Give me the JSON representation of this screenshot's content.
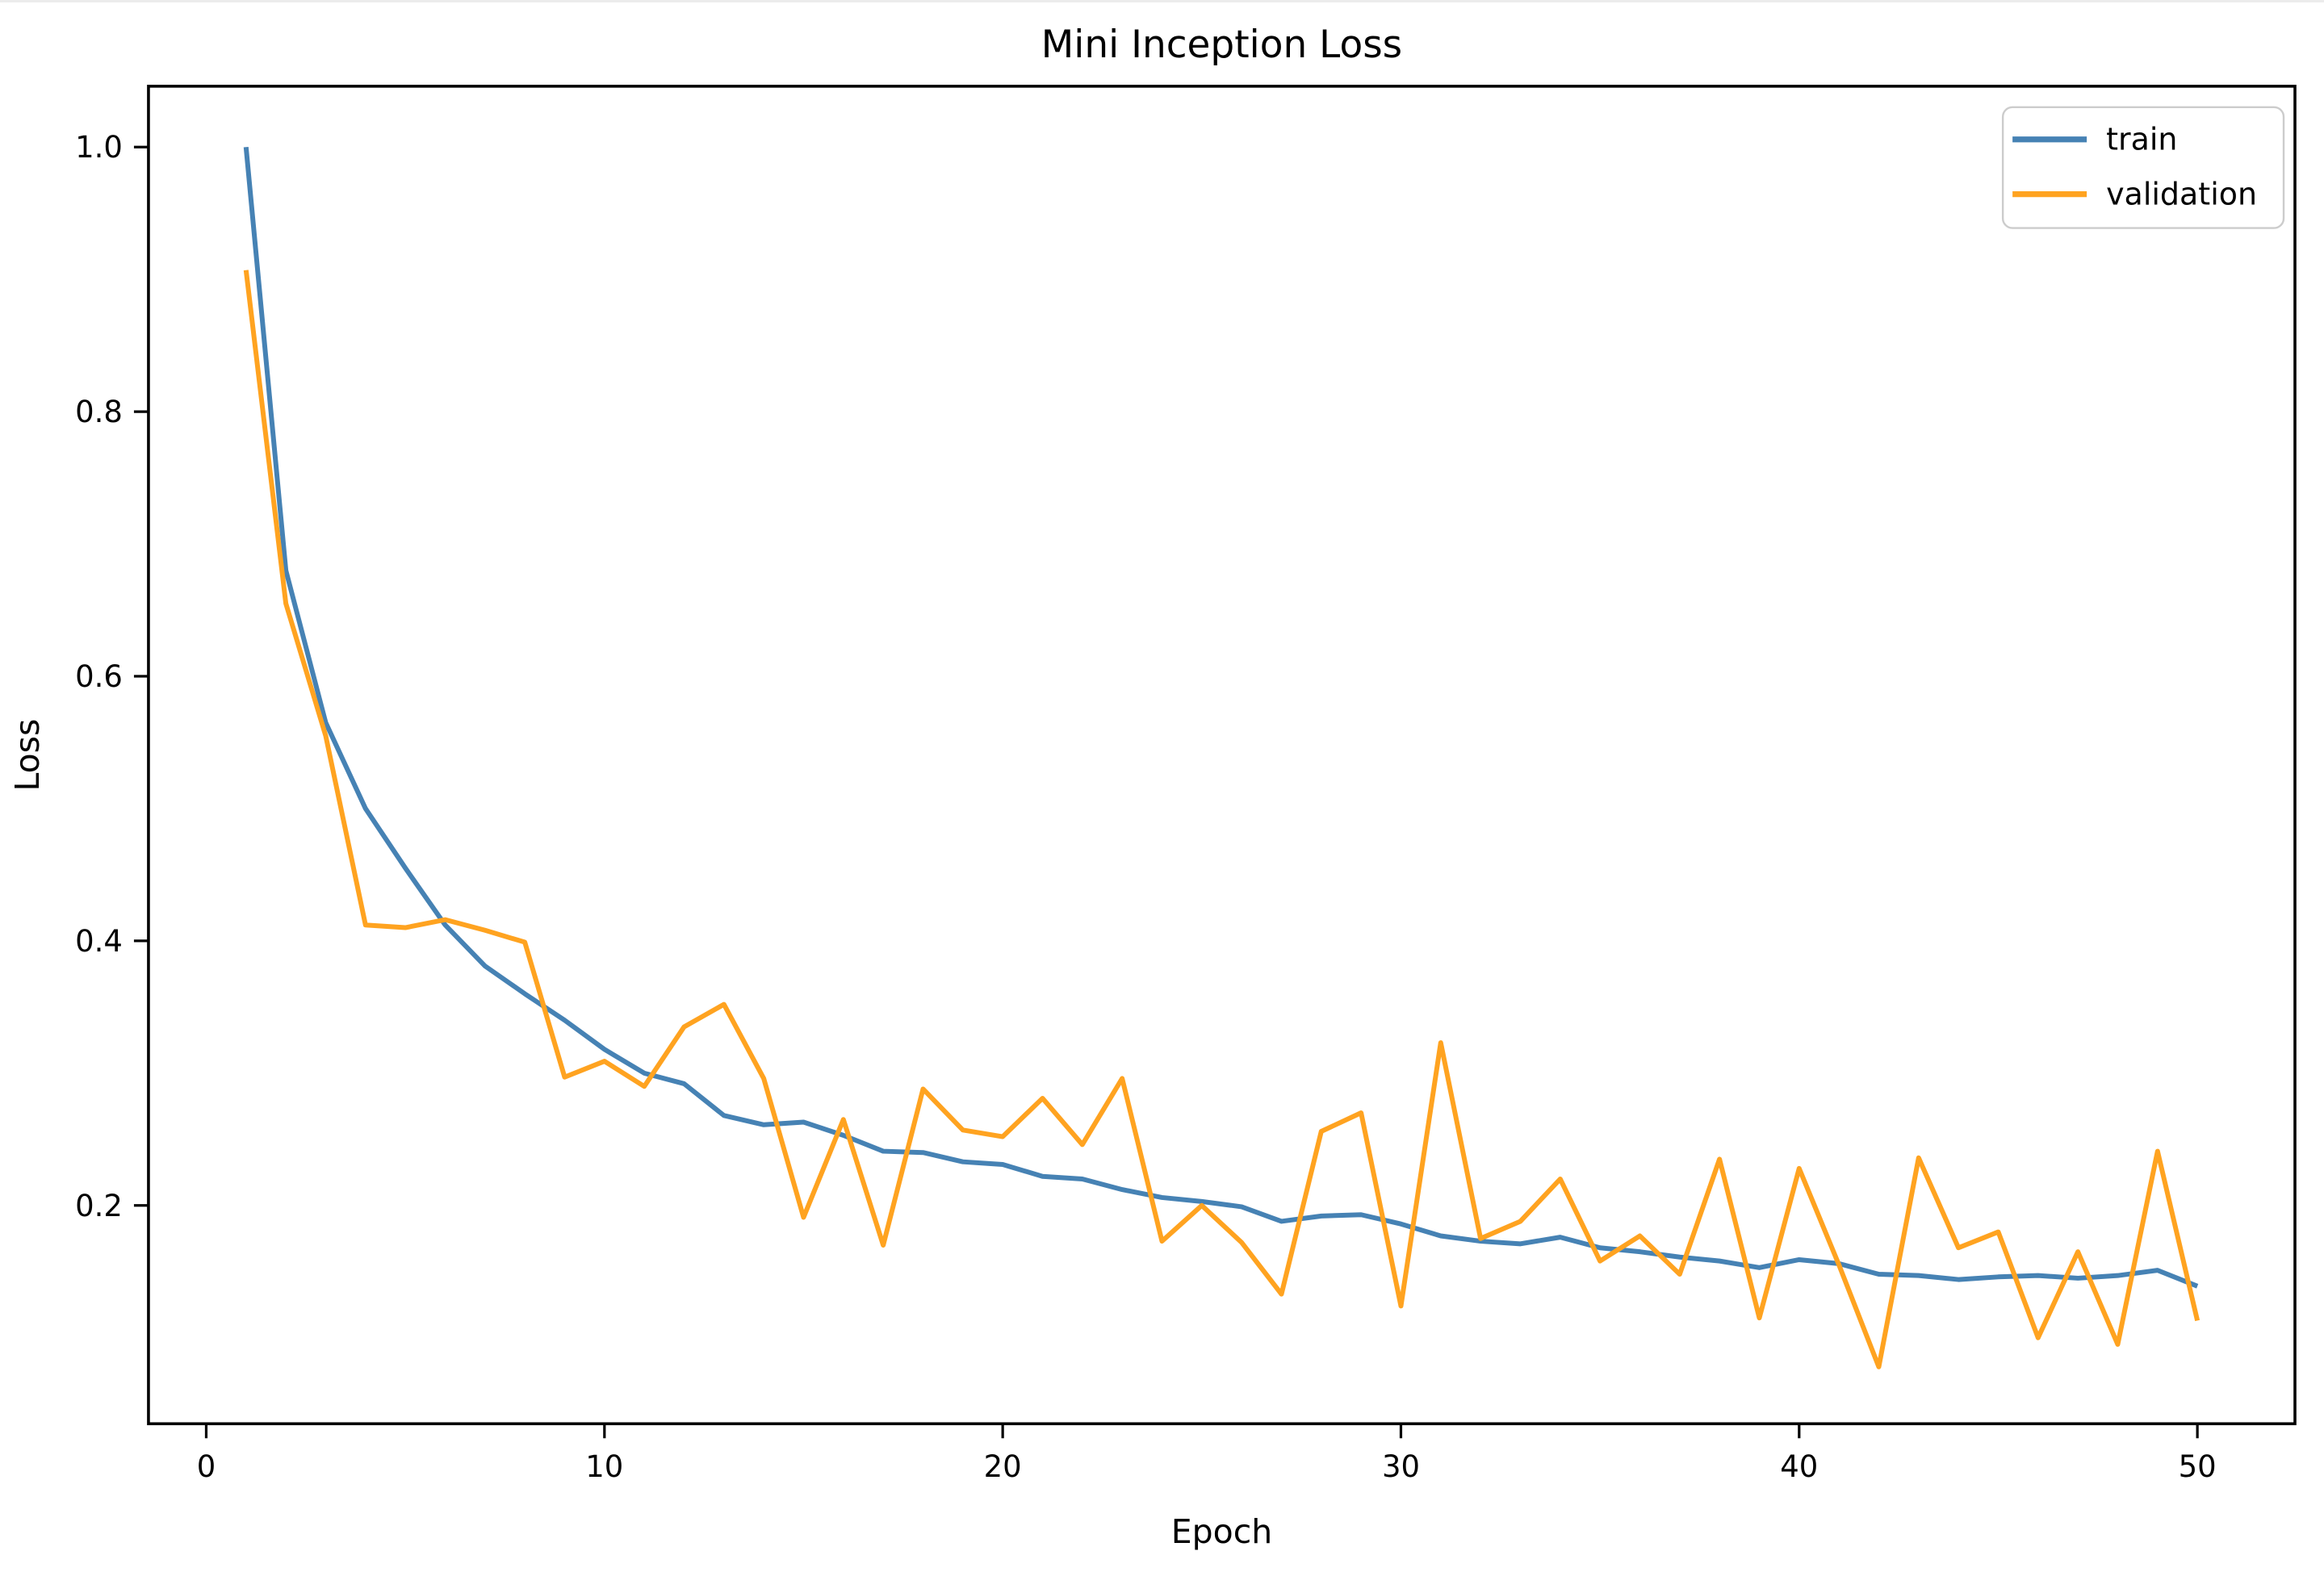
{
  "figure": {
    "background": "#ffffff",
    "edge_color": "#ececec"
  },
  "chart_data": {
    "type": "line",
    "title": "Mini Inception Loss",
    "xlabel": "Epoch",
    "ylabel": "Loss",
    "grid": false,
    "legend_position": "upper right",
    "xlim": [
      -1.45,
      52.45
    ],
    "ylim": [
      0.035,
      1.046
    ],
    "xticks": [
      0,
      10,
      20,
      30,
      40,
      50
    ],
    "yticks": [
      0.2,
      0.4,
      0.6,
      0.8,
      1.0
    ],
    "x": [
      1,
      2,
      3,
      4,
      5,
      6,
      7,
      8,
      9,
      10,
      11,
      12,
      13,
      14,
      15,
      16,
      17,
      18,
      19,
      20,
      21,
      22,
      23,
      24,
      25,
      26,
      27,
      28,
      29,
      30,
      31,
      32,
      33,
      34,
      35,
      36,
      37,
      38,
      39,
      40,
      41,
      42,
      43,
      44,
      45,
      46,
      47,
      48,
      49,
      50
    ],
    "series": [
      {
        "name": "train",
        "color": "#4682B4",
        "values": [
          1.0,
          0.68,
          0.565,
          0.5,
          0.455,
          0.412,
          0.381,
          0.36,
          0.34,
          0.318,
          0.3,
          0.292,
          0.268,
          0.261,
          0.263,
          0.253,
          0.241,
          0.24,
          0.233,
          0.231,
          0.222,
          0.22,
          0.212,
          0.206,
          0.203,
          0.199,
          0.188,
          0.192,
          0.193,
          0.186,
          0.177,
          0.173,
          0.171,
          0.176,
          0.168,
          0.165,
          0.161,
          0.158,
          0.153,
          0.159,
          0.156,
          0.148,
          0.147,
          0.144,
          0.146,
          0.147,
          0.145,
          0.147,
          0.151,
          0.139
        ]
      },
      {
        "name": "validation",
        "color": "#FFA320",
        "values": [
          0.907,
          0.655,
          0.555,
          0.412,
          0.41,
          0.416,
          0.408,
          0.399,
          0.297,
          0.309,
          0.29,
          0.335,
          0.352,
          0.296,
          0.191,
          0.265,
          0.17,
          0.288,
          0.257,
          0.252,
          0.281,
          0.246,
          0.296,
          0.173,
          0.2,
          0.172,
          0.133,
          0.256,
          0.27,
          0.124,
          0.323,
          0.175,
          0.188,
          0.22,
          0.158,
          0.177,
          0.148,
          0.235,
          0.115,
          0.228,
          0.155,
          0.078,
          0.236,
          0.168,
          0.18,
          0.1,
          0.165,
          0.095,
          0.241,
          0.113
        ]
      }
    ]
  }
}
